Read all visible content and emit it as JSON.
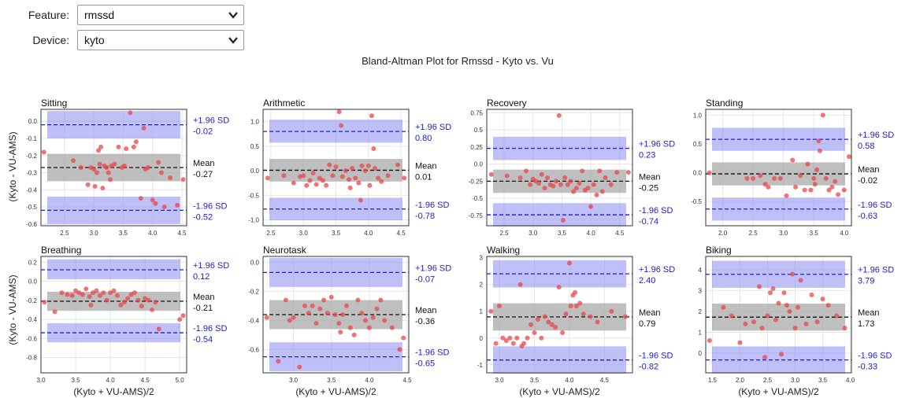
{
  "controls": {
    "feature": {
      "label": "Feature:",
      "value": "rmssd"
    },
    "device": {
      "label": "Device:",
      "value": "kyto"
    }
  },
  "figure": {
    "title": "Bland-Altman Plot for Rmssd - Kyto vs. Vu",
    "ylabel": "(Kyto - VU-AMS)",
    "xlabel": "(Kyto + VU-AMS)/2",
    "upper_label": "+1.96 SD",
    "mean_label": "Mean",
    "lower_label": "-1.96 SD"
  },
  "colors": {
    "points": "#e8454a",
    "mean_band": "#a9a9a9",
    "sd_band": "#8c8cf2",
    "sd_line": "#1f1fd6",
    "sd_text": "#2020d0"
  },
  "chart_data": [
    {
      "type": "scatter",
      "title": "Sitting",
      "xlim": [
        2.1,
        4.58
      ],
      "ylim": [
        -0.61,
        0.07
      ],
      "xticks": [
        2.5,
        3.0,
        3.5,
        4.0,
        4.5
      ],
      "yticks": [
        0.0,
        -0.1,
        -0.2,
        -0.3,
        -0.4,
        -0.5,
        -0.6
      ],
      "mean": -0.27,
      "upper": -0.02,
      "lower": -0.52,
      "mean_band": [
        -0.35,
        -0.19
      ],
      "upper_band": [
        -0.1,
        0.06
      ],
      "lower_band": [
        -0.6,
        -0.44
      ],
      "labels": {
        "upper": "-0.02",
        "mean": "-0.27",
        "lower": "-0.52"
      },
      "x": [
        2.15,
        2.65,
        2.78,
        2.9,
        2.95,
        3.0,
        3.02,
        3.05,
        3.08,
        3.1,
        3.12,
        3.15,
        3.18,
        3.22,
        3.25,
        3.28,
        3.3,
        3.35,
        3.42,
        3.48,
        3.52,
        3.55,
        3.62,
        3.68,
        3.72,
        3.8,
        3.85,
        3.88,
        3.92,
        4.0,
        4.05,
        4.1,
        4.15,
        4.2,
        4.3,
        4.42,
        4.52
      ],
      "y": [
        -0.18,
        -0.23,
        -0.27,
        -0.37,
        -0.27,
        -0.28,
        -0.38,
        -0.3,
        -0.17,
        -0.25,
        -0.15,
        -0.39,
        -0.26,
        -0.27,
        -0.3,
        -0.34,
        -0.26,
        -0.25,
        -0.15,
        -0.27,
        -0.26,
        -0.16,
        0.05,
        -0.15,
        -0.12,
        -0.45,
        -0.04,
        -0.28,
        -0.27,
        -0.46,
        -0.48,
        -0.24,
        -0.3,
        -0.5,
        -0.33,
        -0.49,
        -0.34
      ]
    },
    {
      "type": "scatter",
      "title": "Arithmetic",
      "xlim": [
        2.38,
        4.62
      ],
      "ylim": [
        -1.12,
        1.25
      ],
      "xticks": [
        2.5,
        3.0,
        3.5,
        4.0,
        4.5
      ],
      "yticks": [
        1.0,
        0.5,
        0.0,
        -0.5,
        -1.0
      ],
      "mean": 0.01,
      "upper": 0.8,
      "lower": -0.78,
      "mean_band": [
        -0.22,
        0.24
      ],
      "upper_band": [
        0.57,
        1.04
      ],
      "lower_band": [
        -1.01,
        -0.55
      ],
      "labels": {
        "upper": "0.80",
        "mean": "0.01",
        "lower": "-0.78"
      },
      "x": [
        2.45,
        2.7,
        2.85,
        2.95,
        3.0,
        3.05,
        3.1,
        3.15,
        3.2,
        3.25,
        3.3,
        3.35,
        3.4,
        3.45,
        3.5,
        3.55,
        3.58,
        3.6,
        3.65,
        3.7,
        3.72,
        3.75,
        3.8,
        3.85,
        3.88,
        3.9,
        3.95,
        4.0,
        4.02,
        4.05,
        4.08,
        4.1,
        4.15,
        4.2,
        4.3,
        4.45,
        4.55
      ],
      "y": [
        -0.15,
        -0.1,
        -0.25,
        -0.12,
        -0.1,
        -0.3,
        -0.2,
        -0.05,
        -0.28,
        -0.15,
        -0.2,
        -0.3,
        0.12,
        -0.1,
        0.08,
        1.2,
        0.92,
        -0.12,
        0.0,
        -0.18,
        -0.35,
        0.05,
        -0.15,
        -0.25,
        -0.6,
        0.1,
        0.0,
        0.1,
        -0.3,
        1.12,
        0.45,
        0.05,
        -0.15,
        -0.22,
        -0.1,
        0.12,
        -0.15
      ]
    },
    {
      "type": "scatter",
      "title": "Recovery",
      "xlim": [
        2.2,
        4.72
      ],
      "ylim": [
        -0.9,
        0.8
      ],
      "xticks": [
        2.5,
        3.0,
        3.5,
        4.0,
        4.5
      ],
      "yticks": [
        0.75,
        0.5,
        0.25,
        0.0,
        -0.25,
        -0.5,
        -0.75
      ],
      "mean": -0.25,
      "upper": 0.23,
      "lower": -0.74,
      "mean_band": [
        -0.42,
        -0.08
      ],
      "upper_band": [
        0.06,
        0.4
      ],
      "lower_band": [
        -0.91,
        -0.57
      ],
      "labels": {
        "upper": "0.23",
        "mean": "-0.25",
        "lower": "-0.74"
      },
      "x": [
        2.28,
        2.55,
        2.78,
        2.88,
        2.95,
        3.0,
        3.05,
        3.1,
        3.15,
        3.2,
        3.25,
        3.3,
        3.35,
        3.4,
        3.45,
        3.48,
        3.52,
        3.55,
        3.6,
        3.65,
        3.7,
        3.75,
        3.8,
        3.85,
        3.9,
        3.95,
        4.0,
        4.05,
        4.1,
        4.15,
        4.2,
        4.25,
        4.35,
        4.45,
        4.65
      ],
      "y": [
        -0.15,
        -0.17,
        -0.2,
        -0.1,
        -0.3,
        -0.22,
        -0.25,
        -0.28,
        -0.15,
        -0.35,
        -0.2,
        -0.3,
        -0.32,
        -0.25,
        0.71,
        -0.3,
        -0.82,
        -0.2,
        -0.3,
        -0.25,
        -0.4,
        -0.35,
        -0.28,
        -0.1,
        -0.38,
        -0.35,
        -0.62,
        -0.3,
        -0.45,
        -0.1,
        -0.4,
        -0.2,
        -0.3,
        -0.12,
        -0.12
      ]
    },
    {
      "type": "scatter",
      "title": "Standing",
      "xlim": [
        1.72,
        4.12
      ],
      "ylim": [
        -0.92,
        1.1
      ],
      "xticks": [
        2.0,
        2.5,
        3.0,
        3.5,
        4.0
      ],
      "yticks": [
        1.0,
        0.5,
        0.0,
        -0.5
      ],
      "mean": -0.02,
      "upper": 0.58,
      "lower": -0.63,
      "mean_band": [
        -0.22,
        0.18
      ],
      "upper_band": [
        0.38,
        0.78
      ],
      "lower_band": [
        -0.83,
        -0.43
      ],
      "labels": {
        "upper": "0.58",
        "mean": "-0.02",
        "lower": "-0.63"
      },
      "x": [
        1.78,
        2.4,
        2.5,
        2.62,
        2.7,
        2.75,
        2.85,
        2.95,
        3.05,
        3.15,
        3.2,
        3.28,
        3.35,
        3.4,
        3.45,
        3.5,
        3.52,
        3.55,
        3.58,
        3.6,
        3.65,
        3.7,
        3.75,
        3.8,
        3.85,
        3.9,
        4.0,
        4.08
      ],
      "y": [
        0.0,
        -0.1,
        -0.1,
        -0.05,
        -0.2,
        -0.25,
        -0.1,
        -0.1,
        -0.4,
        0.22,
        -0.25,
        -0.05,
        -0.3,
        0.15,
        -0.3,
        -0.1,
        -0.2,
        0.05,
        0.55,
        0.38,
        1.0,
        -0.1,
        -0.3,
        -0.25,
        -0.15,
        -0.38,
        -0.3,
        0.28
      ]
    },
    {
      "type": "scatter",
      "title": "Breathing",
      "xlim": [
        3.0,
        5.1
      ],
      "ylim": [
        -0.96,
        0.26
      ],
      "xticks": [
        3.0,
        3.5,
        4.0,
        4.5,
        5.0
      ],
      "yticks": [
        0.2,
        0.0,
        -0.2,
        -0.4,
        -0.6,
        -0.8
      ],
      "mean": -0.21,
      "upper": 0.12,
      "lower": -0.54,
      "mean_band": [
        -0.31,
        -0.11
      ],
      "upper_band": [
        0.02,
        0.23
      ],
      "lower_band": [
        -0.64,
        -0.44
      ],
      "labels": {
        "upper": "0.12",
        "mean": "-0.21",
        "lower": "-0.54"
      },
      "x": [
        3.05,
        3.2,
        3.3,
        3.38,
        3.45,
        3.5,
        3.55,
        3.6,
        3.65,
        3.7,
        3.72,
        3.75,
        3.8,
        3.85,
        3.9,
        3.95,
        4.0,
        4.05,
        4.1,
        4.15,
        4.2,
        4.25,
        4.3,
        4.35,
        4.4,
        4.45,
        4.5,
        4.55,
        4.6,
        4.65,
        4.7,
        5.0,
        5.05
      ],
      "y": [
        -0.22,
        -0.32,
        -0.12,
        -0.14,
        -0.15,
        -0.1,
        -0.12,
        -0.14,
        -0.08,
        -0.16,
        -0.25,
        -0.12,
        -0.1,
        -0.15,
        -0.12,
        -0.2,
        -0.12,
        -0.1,
        -0.15,
        -0.25,
        -0.22,
        -0.18,
        -0.14,
        -0.12,
        -0.2,
        -0.26,
        -0.18,
        -0.2,
        -0.3,
        -0.22,
        -0.5,
        -0.4,
        -0.36
      ]
    },
    {
      "type": "scatter",
      "title": "Neurotask",
      "xlim": [
        2.6,
        4.52
      ],
      "ylim": [
        -0.76,
        0.04
      ],
      "xticks": [
        3.0,
        3.5,
        4.0,
        4.5
      ],
      "yticks": [
        0.0,
        -0.2,
        -0.4,
        -0.6
      ],
      "mean": -0.36,
      "upper": -0.07,
      "lower": -0.65,
      "mean_band": [
        -0.46,
        -0.26
      ],
      "upper_band": [
        -0.17,
        0.03
      ],
      "lower_band": [
        -0.75,
        -0.55
      ],
      "labels": {
        "upper": "-0.07",
        "mean": "-0.36",
        "lower": "-0.65"
      },
      "x": [
        2.65,
        2.8,
        2.9,
        2.95,
        3.0,
        3.08,
        3.15,
        3.2,
        3.25,
        3.3,
        3.35,
        3.4,
        3.45,
        3.5,
        3.55,
        3.6,
        3.62,
        3.65,
        3.7,
        3.75,
        3.8,
        3.85,
        3.9,
        3.95,
        4.0,
        4.05,
        4.1,
        4.15,
        4.2,
        4.3,
        4.4,
        4.45
      ],
      "y": [
        -0.38,
        -0.68,
        -0.26,
        -0.4,
        -0.38,
        -0.72,
        -0.3,
        -0.35,
        -0.3,
        -0.42,
        -0.32,
        -0.26,
        -0.35,
        -0.24,
        -0.36,
        -0.42,
        -0.48,
        -0.36,
        -0.3,
        -0.45,
        -0.5,
        -0.26,
        -0.35,
        -0.4,
        -0.45,
        -0.38,
        -0.32,
        -0.26,
        -0.4,
        -0.45,
        -0.6,
        -0.52
      ]
    },
    {
      "type": "scatter",
      "title": "Walking",
      "xlim": [
        2.82,
        4.9
      ],
      "ylim": [
        -1.3,
        3.05
      ],
      "xticks": [
        3.0,
        3.5,
        4.0,
        4.5
      ],
      "yticks": [
        3,
        2,
        1,
        0,
        -1
      ],
      "mean": 0.79,
      "upper": 2.4,
      "lower": -0.82,
      "mean_band": [
        0.28,
        1.3
      ],
      "upper_band": [
        1.89,
        2.91
      ],
      "lower_band": [
        -1.33,
        -0.31
      ],
      "labels": {
        "upper": "2.40",
        "mean": "0.79",
        "lower": "-0.82"
      },
      "x": [
        2.88,
        2.95,
        3.0,
        3.05,
        3.1,
        3.15,
        3.2,
        3.25,
        3.3,
        3.32,
        3.35,
        3.4,
        3.45,
        3.5,
        3.55,
        3.6,
        3.65,
        3.7,
        3.75,
        3.8,
        3.85,
        3.9,
        3.95,
        4.0,
        4.02,
        4.05,
        4.08,
        4.1,
        4.15,
        4.2,
        4.3,
        4.4,
        4.6,
        4.8
      ],
      "y": [
        1.0,
        -0.2,
        1.2,
        0.0,
        -0.1,
        0.0,
        -0.2,
        0.0,
        2.0,
        -0.3,
        -0.2,
        0.0,
        0.5,
        0.2,
        0.7,
        0.0,
        0.8,
        0.6,
        0.5,
        0.4,
        1.9,
        0.2,
        0.9,
        2.8,
        1.2,
        1.6,
        1.7,
        1.2,
        1.3,
        0.9,
        0.8,
        0.6,
        1.0,
        0.8
      ]
    },
    {
      "type": "scatter",
      "title": "Biking",
      "xlim": [
        1.38,
        4.02
      ],
      "ylim": [
        -0.95,
        4.65
      ],
      "xticks": [
        1.5,
        2.0,
        2.5,
        3.0,
        3.5,
        4.0
      ],
      "yticks": [
        4,
        3,
        2,
        1,
        0
      ],
      "mean": 1.73,
      "upper": 3.79,
      "lower": -0.33,
      "mean_band": [
        1.08,
        2.38
      ],
      "upper_band": [
        3.14,
        4.44
      ],
      "lower_band": [
        -0.98,
        0.32
      ],
      "labels": {
        "upper": "3.79",
        "mean": "1.73",
        "lower": "-0.33"
      },
      "x": [
        1.45,
        1.7,
        1.85,
        2.0,
        2.1,
        2.25,
        2.35,
        2.4,
        2.45,
        2.5,
        2.55,
        2.6,
        2.65,
        2.7,
        2.75,
        2.8,
        2.85,
        2.9,
        2.95,
        3.0,
        3.05,
        3.1,
        3.2,
        3.3,
        3.4,
        3.5,
        3.6,
        3.75,
        3.9
      ],
      "y": [
        0.6,
        2.2,
        1.8,
        0.5,
        1.4,
        1.5,
        3.2,
        1.2,
        -0.2,
        1.8,
        2.9,
        3.1,
        1.6,
        2.4,
        -0.05,
        2.9,
        2.3,
        2.0,
        3.8,
        1.2,
        2.2,
        3.5,
        1.4,
        2.8,
        1.5,
        2.6,
        2.3,
        1.8,
        1.2
      ]
    }
  ]
}
